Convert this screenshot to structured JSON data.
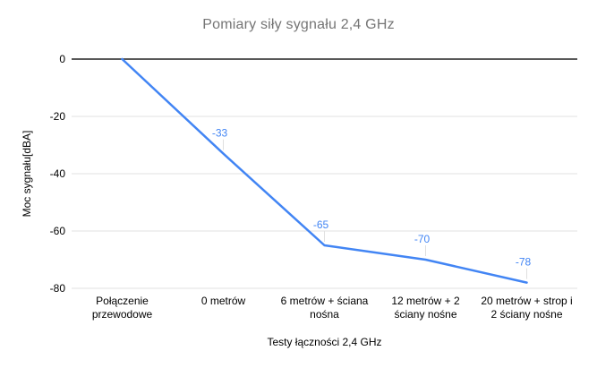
{
  "chart_data": {
    "type": "line",
    "title": "Pomiary siły sygnału 2,4 GHz",
    "xlabel": "Testy łączności 2,4 GHz",
    "ylabel": "Moc sygnału[dBA]",
    "categories": [
      "Połączenie przewodowe",
      "0 metrów",
      "6 metrów + ściana nośna",
      "12 metrów + 2 ściany nośne",
      "20 metrów + strop i 2 ściany nośne"
    ],
    "category_label_lines": [
      [
        "Połączenie",
        "przewodowe"
      ],
      [
        "0 metrów"
      ],
      [
        "6 metrów + ściana",
        "nośna"
      ],
      [
        "12 metrów + 2",
        "ściany nośne"
      ],
      [
        "20 metrów + strop i",
        "2 ściany nośne"
      ]
    ],
    "series": [
      {
        "name": "Moc sygnału",
        "values": [
          0,
          -33,
          -65,
          -70,
          -78
        ],
        "point_labels": [
          null,
          "-33",
          "-65",
          "-70",
          "-78"
        ]
      }
    ],
    "ylim": [
      -80,
      0
    ],
    "yticks": [
      0,
      -20,
      -40,
      -60,
      -80
    ],
    "ytick_labels": [
      "0",
      "-20",
      "-40",
      "-60",
      "-80"
    ],
    "grid": true,
    "legend": "none",
    "colors": {
      "series": "#4285f4",
      "data_label": "#4285f4",
      "title": "#757575",
      "axis_text": "#000000",
      "gridline": "#e0e0e0",
      "zero_line": "#212121",
      "leader_line": "#e0e0e0",
      "background": "#ffffff"
    }
  }
}
